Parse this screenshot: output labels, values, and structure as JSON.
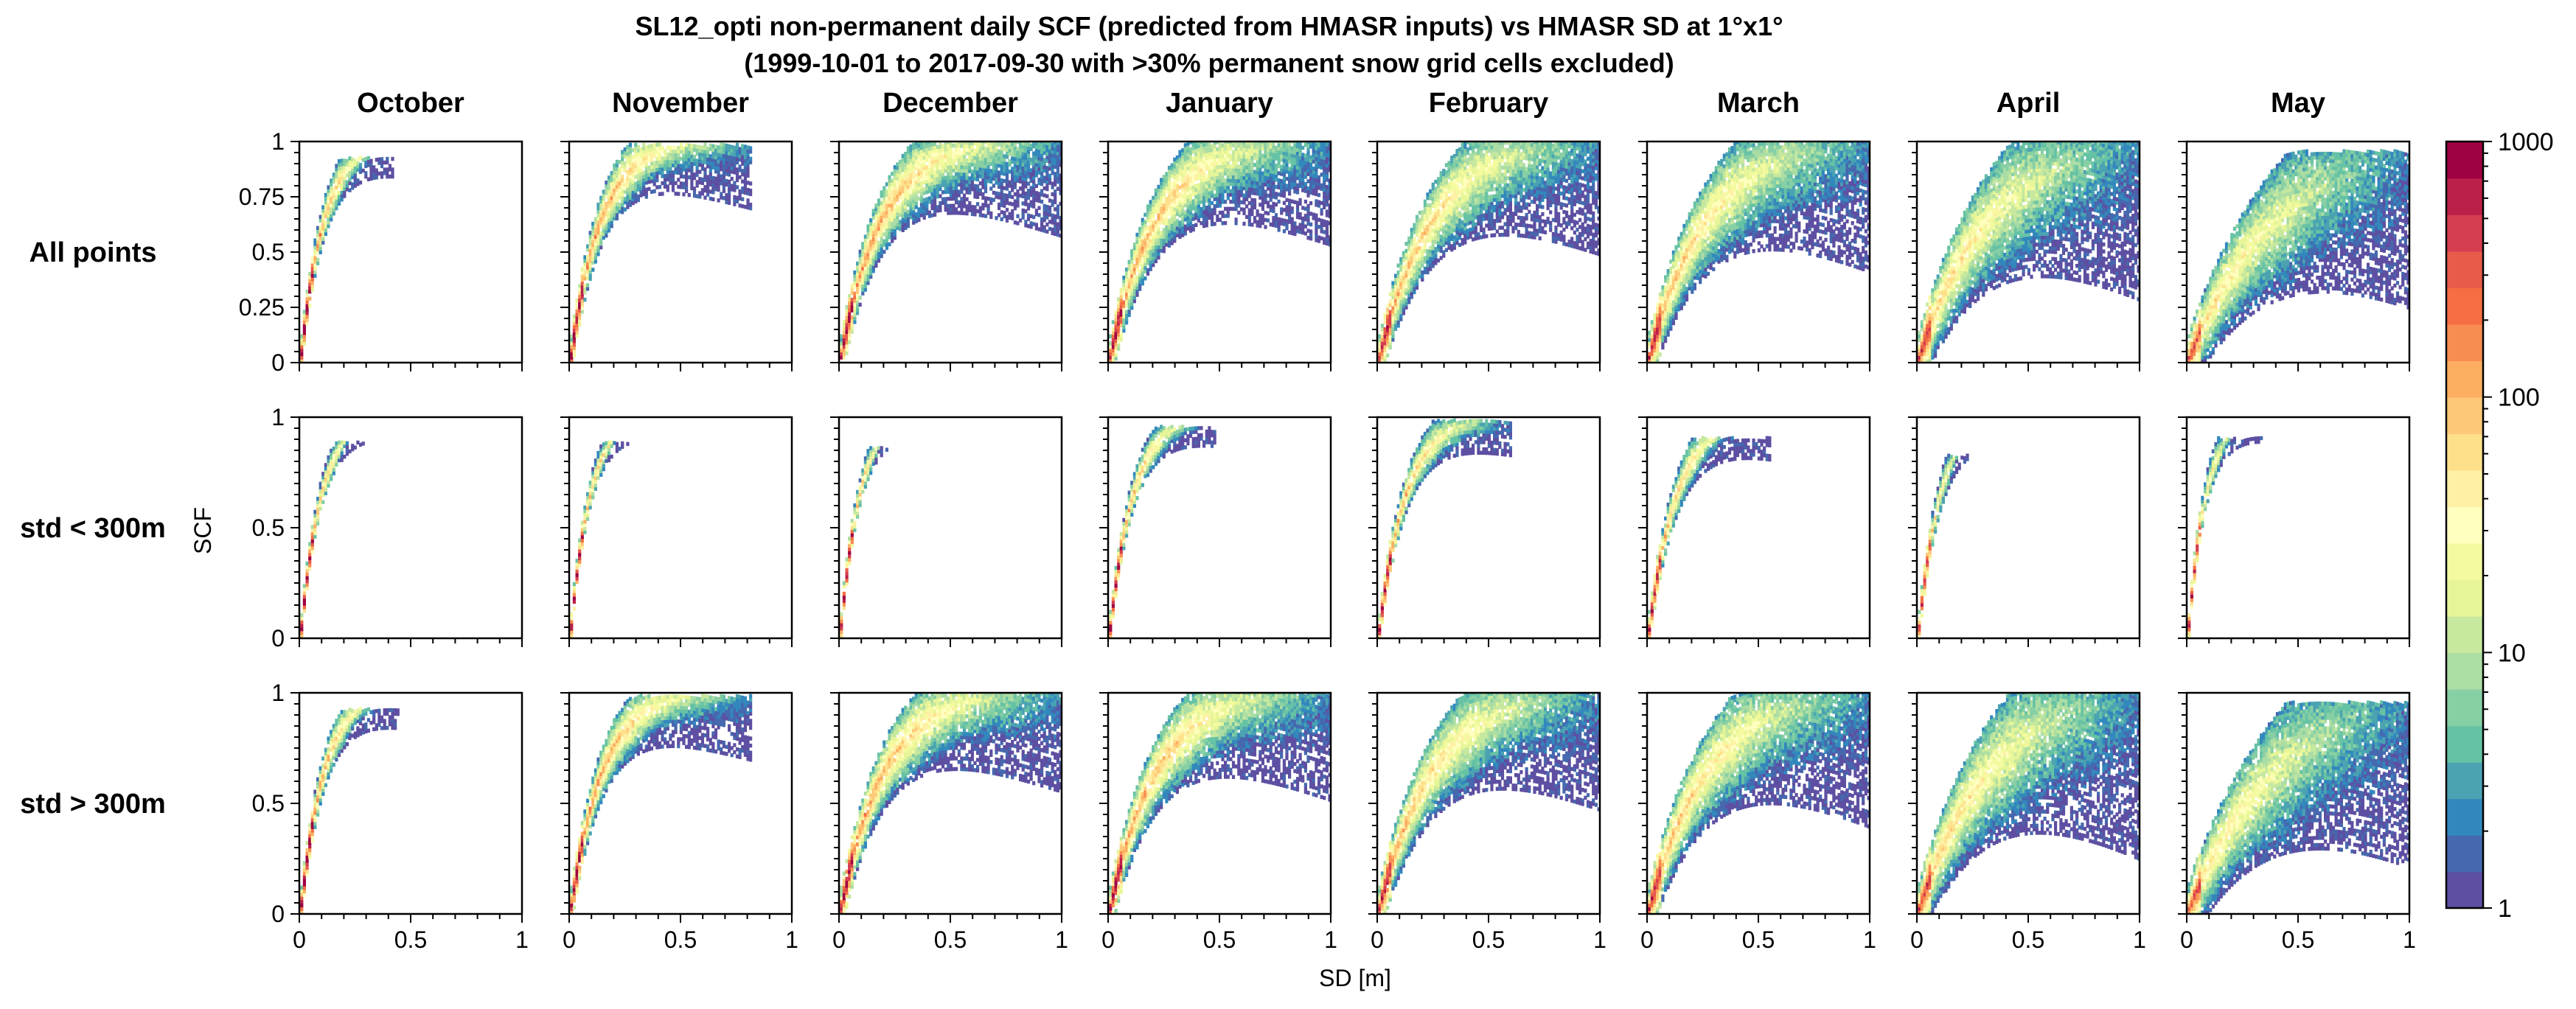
{
  "chart_data": {
    "type": "heatmap",
    "title_line1": "SL12_opti non-permanent daily SCF (predicted from HMASR inputs) vs HMASR SD at 1°x1°",
    "title_line2": "(1999-10-01 to 2017-09-30 with >30% permanent snow grid cells excluded)",
    "xlabel": "SD [m]",
    "ylabel": "SCF",
    "columns": [
      "October",
      "November",
      "December",
      "January",
      "February",
      "March",
      "April",
      "May"
    ],
    "rows": [
      "All points",
      "std < 300m",
      "std > 300m"
    ],
    "xlim": [
      0,
      1
    ],
    "ylim": [
      0,
      1
    ],
    "x_ticks": [
      {
        "value": 0,
        "label": "0"
      },
      {
        "value": 0.5,
        "label": "0.5"
      },
      {
        "value": 1,
        "label": "1"
      }
    ],
    "y_ticks_row1": [
      {
        "value": 0,
        "label": "0"
      },
      {
        "value": 0.25,
        "label": "0.25"
      },
      {
        "value": 0.5,
        "label": "0.5"
      },
      {
        "value": 0.75,
        "label": "0.75"
      },
      {
        "value": 1,
        "label": "1"
      }
    ],
    "y_ticks_other": [
      {
        "value": 0,
        "label": "0"
      },
      {
        "value": 0.5,
        "label": "0.5"
      },
      {
        "value": 1,
        "label": "1"
      }
    ],
    "colorbar": {
      "scale": "log",
      "range": [
        1,
        1000
      ],
      "ticks": [
        {
          "value": 1,
          "label": "1"
        },
        {
          "value": 10,
          "label": "10"
        },
        {
          "value": 100,
          "label": "100"
        },
        {
          "value": 1000,
          "label": "1000"
        }
      ],
      "colors": [
        "#5e4fa2",
        "#4668ae",
        "#3288bd",
        "#4ba3b2",
        "#66c2a5",
        "#87cfa4",
        "#abdda4",
        "#c6e89f",
        "#e6f598",
        "#f4fa9f",
        "#ffffbf",
        "#fff0a6",
        "#fee08b",
        "#fdc878",
        "#fdae61",
        "#f88d52",
        "#f46d43",
        "#e65b4a",
        "#d53e4f",
        "#bb2048",
        "#9e0142"
      ]
    },
    "panels": [
      [
        {
          "month": "October",
          "k": 3.0,
          "w": 0.15,
          "xmax": 0.42,
          "ymax": 0.92,
          "hue": 0.85
        },
        {
          "month": "November",
          "k": 2.3,
          "w": 0.2,
          "xmax": 0.82,
          "ymax": 0.98,
          "hue": 0.8
        },
        {
          "month": "December",
          "k": 1.7,
          "w": 0.24,
          "xmax": 1.0,
          "ymax": 1.0,
          "hue": 0.78
        },
        {
          "month": "January",
          "k": 1.5,
          "w": 0.26,
          "xmax": 1.0,
          "ymax": 1.0,
          "hue": 0.76
        },
        {
          "month": "February",
          "k": 1.3,
          "w": 0.28,
          "xmax": 1.0,
          "ymax": 1.0,
          "hue": 0.72
        },
        {
          "month": "March",
          "k": 1.2,
          "w": 0.32,
          "xmax": 1.0,
          "ymax": 1.0,
          "hue": 0.7
        },
        {
          "month": "April",
          "k": 1.0,
          "w": 0.38,
          "xmax": 1.0,
          "ymax": 1.0,
          "hue": 0.66
        },
        {
          "month": "May",
          "k": 0.8,
          "w": 0.38,
          "xmax": 1.0,
          "ymax": 0.95,
          "hue": 0.62
        }
      ],
      [
        {
          "month": "October",
          "k": 3.4,
          "w": 0.1,
          "xmax": 0.34,
          "ymax": 0.88,
          "hue": 0.85
        },
        {
          "month": "November",
          "k": 3.6,
          "w": 0.1,
          "xmax": 0.38,
          "ymax": 0.88,
          "hue": 0.82
        },
        {
          "month": "December",
          "k": 3.7,
          "w": 0.1,
          "xmax": 0.36,
          "ymax": 0.86,
          "hue": 0.8
        },
        {
          "month": "January",
          "k": 3.0,
          "w": 0.12,
          "xmax": 0.48,
          "ymax": 0.95,
          "hue": 0.8
        },
        {
          "month": "February",
          "k": 2.6,
          "w": 0.14,
          "xmax": 0.6,
          "ymax": 0.98,
          "hue": 0.78
        },
        {
          "month": "March",
          "k": 2.5,
          "w": 0.16,
          "xmax": 0.55,
          "ymax": 0.9,
          "hue": 0.76
        },
        {
          "month": "April",
          "k": 3.2,
          "w": 0.13,
          "xmax": 0.32,
          "ymax": 0.82,
          "hue": 0.72
        },
        {
          "month": "May",
          "k": 4.0,
          "w": 0.12,
          "xmax": 0.34,
          "ymax": 0.9,
          "hue": 0.7
        }
      ],
      [
        {
          "month": "October",
          "k": 3.0,
          "w": 0.15,
          "xmax": 0.44,
          "ymax": 0.92,
          "hue": 0.85
        },
        {
          "month": "November",
          "k": 2.2,
          "w": 0.2,
          "xmax": 0.82,
          "ymax": 0.98,
          "hue": 0.8
        },
        {
          "month": "December",
          "k": 1.6,
          "w": 0.25,
          "xmax": 1.0,
          "ymax": 1.0,
          "hue": 0.78
        },
        {
          "month": "January",
          "k": 1.5,
          "w": 0.27,
          "xmax": 1.0,
          "ymax": 1.0,
          "hue": 0.76
        },
        {
          "month": "February",
          "k": 1.3,
          "w": 0.29,
          "xmax": 1.0,
          "ymax": 1.0,
          "hue": 0.72
        },
        {
          "month": "March",
          "k": 1.2,
          "w": 0.33,
          "xmax": 1.0,
          "ymax": 1.0,
          "hue": 0.7
        },
        {
          "month": "April",
          "k": 1.0,
          "w": 0.4,
          "xmax": 1.0,
          "ymax": 1.0,
          "hue": 0.66
        },
        {
          "month": "May",
          "k": 0.8,
          "w": 0.4,
          "xmax": 1.0,
          "ymax": 0.95,
          "hue": 0.62
        }
      ]
    ]
  }
}
